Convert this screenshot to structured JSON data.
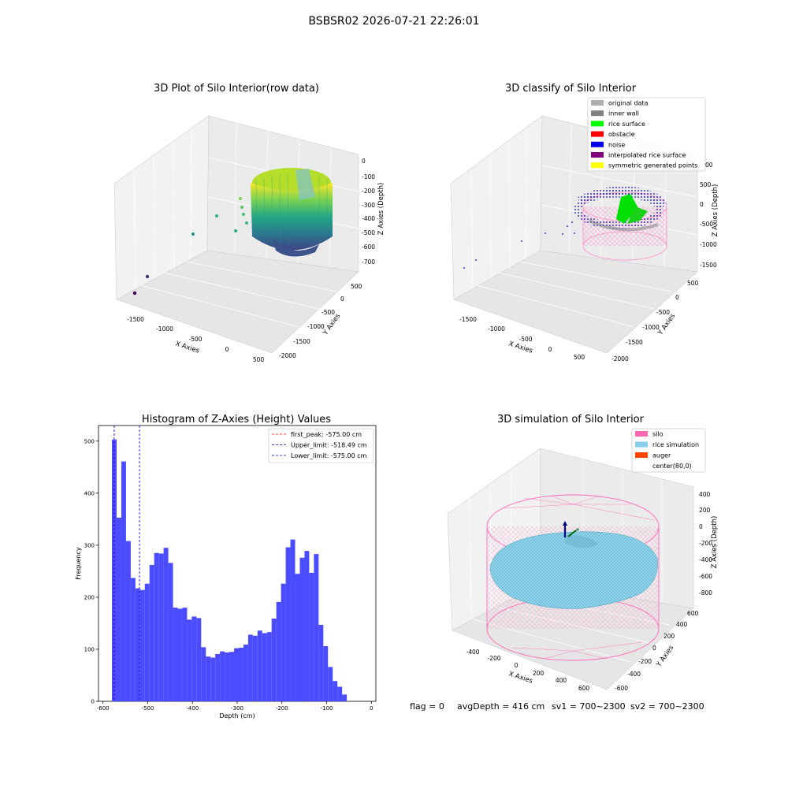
{
  "suptitle": "BSBSR02 2026-07-21 22:26:01",
  "footer": {
    "flag": "flag = 0",
    "avg_depth": "avgDepth = 416 cm",
    "sv1": "sv1 = 700~2300",
    "sv2": "sv2 = 700~2300"
  },
  "chart_data": [
    {
      "type": "scatter",
      "title": "3D Plot of Silo Interior(row data)",
      "xlabel": "X Axies",
      "ylabel": "Y Axies",
      "zlabel": "Z Axies (Depth)",
      "xticks": [
        "-1500",
        "-1000",
        "-500",
        "0",
        "500"
      ],
      "yticks": [
        "500",
        "0",
        "-500",
        "-1000",
        "-1500",
        "-2000"
      ],
      "zticks": [
        "0",
        "-100",
        "-200",
        "-300",
        "-400",
        "-500",
        "-600",
        "-700"
      ],
      "colormap": "viridis",
      "grid": true
    },
    {
      "type": "scatter",
      "title": "3D classify of Silo Interior",
      "xlabel": "X Axies",
      "ylabel": "Y Axies",
      "zlabel": "Z Axies (Depth)",
      "xticks": [
        "-1500",
        "-1000",
        "-500",
        "0",
        "500"
      ],
      "yticks": [
        "500",
        "0",
        "-500",
        "-1000",
        "-1500",
        "-2000"
      ],
      "zticks": [
        "500",
        "0",
        "-500",
        "-1000",
        "-1500"
      ],
      "partial_tick": "00",
      "legend_position": "top-right",
      "legend": [
        {
          "label": "original data",
          "color": "#b0b0b0"
        },
        {
          "label": "inner wall",
          "color": "#808080"
        },
        {
          "label": "rice surface",
          "color": "#00ff00"
        },
        {
          "label": "obstacle",
          "color": "#ff0000"
        },
        {
          "label": "noise",
          "color": "#0000ee"
        },
        {
          "label": "interpolated rice surface",
          "color": "#800080"
        },
        {
          "label": "symmetric generated points",
          "color": "#ffff00"
        }
      ],
      "grid": true
    },
    {
      "type": "bar",
      "title": "Histogram of Z-Axies (Height) Values",
      "xlabel": "Depth (cm)",
      "ylabel": "Frequency",
      "xlim": [
        -610,
        10
      ],
      "ylim": [
        0,
        530
      ],
      "xticks": [
        "-600",
        "-500",
        "-400",
        "-300",
        "-200",
        "-100",
        "0"
      ],
      "yticks": [
        "0",
        "100",
        "200",
        "300",
        "400",
        "500"
      ],
      "bar_color": "#4b4bff",
      "bin_start": -580,
      "bin_width": 10.5,
      "values": [
        503,
        353,
        461,
        308,
        237,
        217,
        214,
        226,
        262,
        285,
        284,
        295,
        266,
        180,
        178,
        180,
        157,
        163,
        160,
        104,
        86,
        84,
        91,
        96,
        94,
        95,
        102,
        103,
        109,
        128,
        126,
        136,
        131,
        133,
        159,
        191,
        226,
        296,
        311,
        245,
        276,
        289,
        247,
        283,
        147,
        106,
        66,
        39,
        28,
        13
      ],
      "lines": [
        {
          "value": -575.0,
          "color": "#ff0000",
          "label": "first_peak: -575.00 cm"
        },
        {
          "value": -518.49,
          "color": "#0000cc",
          "label": "Upper_limit: -518.49 cm"
        },
        {
          "value": -575.0,
          "color": "#0000cc",
          "label": "Lower_limit: -575.00 cm"
        }
      ],
      "legend_position": "top-right",
      "grid": false
    },
    {
      "type": "scatter",
      "title": "3D simulation of Silo Interior",
      "xlabel": "X Axies",
      "ylabel": "Y Axies",
      "zlabel": "Z Axies (Depth)",
      "xticks": [
        "-400",
        "-200",
        "0",
        "200",
        "400",
        "600"
      ],
      "yticks": [
        "600",
        "400",
        "200",
        "0",
        "-200",
        "-400",
        "-600"
      ],
      "zticks": [
        "400",
        "200",
        "0",
        "-200",
        "-400",
        "-600",
        "-800"
      ],
      "legend_position": "top-right",
      "legend": [
        {
          "label": "silo",
          "color": "#ff69b4"
        },
        {
          "label": "rice simulation",
          "color": "#87ceeb"
        },
        {
          "label": "auger",
          "color": "#ff4500"
        },
        {
          "label": "center(80,0)",
          "color": ""
        }
      ],
      "grid": true
    }
  ]
}
